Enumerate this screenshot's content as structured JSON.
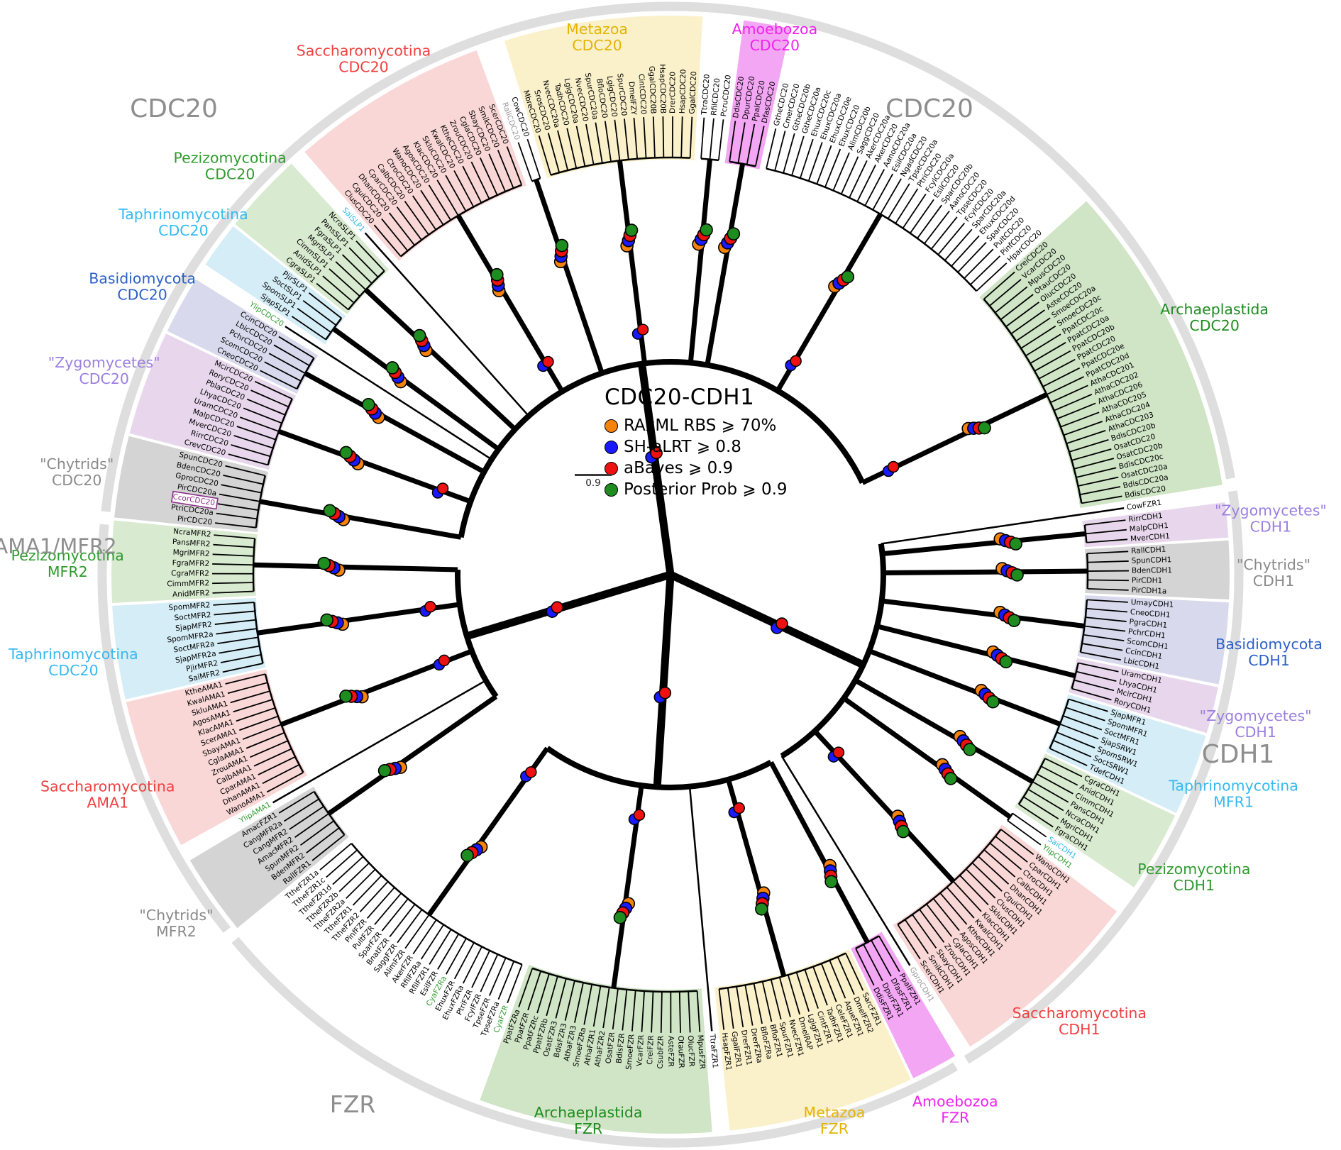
{
  "figure": {
    "legend": {
      "title": "CDC20-CDH1",
      "items": [
        {
          "label": "RAxML RBS ⩾ 70%",
          "color": "#F5820B"
        },
        {
          "label": "SH-aLRT ⩾ 0.8",
          "color": "#1A1AFF"
        },
        {
          "label": "aBayes ⩾ 0.9",
          "color": "#EE1111"
        },
        {
          "label": "Posterior Prob ⩾ 0.9",
          "color": "#1E8C1E"
        }
      ],
      "scale_bar_label": "0.9"
    }
  },
  "outer_ring_labels": [
    {
      "text": "CDC20",
      "color": "#8E8E8E"
    },
    {
      "text": "CDC20",
      "color": "#8E8E8E"
    },
    {
      "text": "AMA1/MFR2",
      "color": "#8E8E8E"
    },
    {
      "text": "CDH1",
      "color": "#8E8E8E"
    },
    {
      "text": "FZR",
      "color": "#8E8E8E"
    }
  ],
  "tree": {
    "special_leaf_styles": {
      "RallCDC20": {
        "color": "#9A9A9A"
      },
      "GproCDH1": {
        "color": "#9A9A9A"
      },
      "SaiSLP1": {
        "color": "#2BB8E8"
      },
      "SaiCDH1": {
        "color": "#2BB8E8"
      },
      "YlipCDC20": {
        "color": "#2E9B2E"
      },
      "YlipAMA1": {
        "color": "#2E9B2E"
      },
      "YlipCDH1": {
        "color": "#2E9B2E"
      },
      "CyaFZR": {
        "color": "#2E9B2E"
      },
      "CyaFZRa": {
        "color": "#2E9B2E"
      },
      "CcorCDC20": {
        "color": "#8B2F8B",
        "boxed": true
      }
    },
    "sectors": [
      {
        "id": "cdc20-top-singles",
        "bg": null,
        "label": null,
        "leaves": [
          "RallCDC20",
          "CowCDC20"
        ]
      },
      {
        "id": "metazoa-cdc20",
        "bg": "#FAF1CB",
        "label": {
          "line1": "Metazoa",
          "line2": "CDC20",
          "color": "#E3B400"
        },
        "leaves": [
          "MbreCDC20",
          "SrosCDC20",
          "NvecCDC20a",
          "TadhCDC20",
          "LgigCDC20a",
          "NvecCDC20",
          "SpurCDC20a",
          "BfloCDC20",
          "LgigCDC20",
          "SpurCDC20",
          "DmelFZY",
          "CintCDC20",
          "GgalCDC20B",
          "HsapCDC20B",
          "DrerCDC20",
          "HsapCDC20",
          "GgalCDC20"
        ]
      },
      {
        "id": "cdc20-ciliate-singles",
        "bg": null,
        "label": null,
        "leaves": [
          "TtraCDC20",
          "RfilCDC20",
          "PcruCDC20"
        ]
      },
      {
        "id": "amoebozoa-cdc20",
        "bg": "#F3A6F3",
        "label": {
          "line1": "Amoebozoa",
          "line2": "CDC20",
          "color": "#EE22EE"
        },
        "leaves": [
          "DdisCDC20",
          "DpurCDC20",
          "PpalCDC20",
          "DfasCDC20"
        ]
      },
      {
        "id": "cdc20-algal-white",
        "bg": null,
        "label": null,
        "leaves": [
          "GtheCDC20",
          "CmerCDC20",
          "GtheCDC20b",
          "GtheCDC20a",
          "EhuxCDC20c",
          "EhuxCDC20a",
          "EhuxCDC20e",
          "EhuxCDC20",
          "AlimCDC20b",
          "SaggCDC20",
          "AkerCDC20a",
          "AkerCDC20",
          "AanoCDC20a",
          "EsilCDC20a",
          "NgadCDC20",
          "TpseCDC20a",
          "PtriCDC20",
          "FcylCDC20a",
          "EsilCDC20",
          "SparCDC20b",
          "AanoCDC20",
          "TpseCDC20",
          "FcylCDC20",
          "SparCDC20a",
          "EhuxCDC20d",
          "SparCDC20",
          "PultCDC20",
          "PinfCDC20",
          "HparCDC20"
        ]
      },
      {
        "id": "archaeplastida-cdc20",
        "bg": "#CFE5C6",
        "label": {
          "line1": "Archaeplastida",
          "line2": "CDC20",
          "color": "#1E8C1E"
        },
        "leaves": [
          "CreiCDC20",
          "VcarCDC20",
          "MpusCDC20",
          "OtauCDC20",
          "OlucCDC20",
          "AsteCDC20",
          "SmoeCDC20a",
          "SmoeCDC20c",
          "PpatCDC20c",
          "PpatCDC20a",
          "PpatCDC20b",
          "PpatCDC20",
          "PpatCDC20e",
          "PpatCDC20d",
          "AthaCDC201",
          "AthaCDC202",
          "AthaCDC206",
          "AthaCDC205",
          "AthaCDC204",
          "AthaCDC203",
          "BdisCDC20b",
          "OsatCDC20",
          "OsatCDC20b",
          "BdisCDC20c",
          "OsatCDC20a",
          "BdisCDC20a",
          "BdisCDC20"
        ]
      },
      {
        "id": "cow-fzr1-single",
        "bg": null,
        "label": null,
        "leaves": [
          "CowFZR1"
        ]
      },
      {
        "id": "zygomycetes-cdh1-a",
        "bg": "#E8D7EC",
        "label": {
          "line1": "\"Zygomycetes\"",
          "line2": "CDH1",
          "color": "#9B7FE0"
        },
        "leaves": [
          "RirrCDH1",
          "MalpCDH1",
          "MverCDH1"
        ]
      },
      {
        "id": "chytrids-cdh1",
        "bg": "#D4D4D4",
        "label": {
          "line1": "\"Chytrids\"",
          "line2": "CDH1",
          "color": "#8A8A8A"
        },
        "leaves": [
          "RallCDH1",
          "SpunCDH1",
          "BdenCDH1",
          "PirCDH1",
          "PirCDH1a"
        ]
      },
      {
        "id": "basidiomycota-cdh1",
        "bg": "#D8D9ED",
        "label": {
          "line1": "Basidiomycota",
          "line2": "CDH1",
          "color": "#2B5FC7"
        },
        "leaves": [
          "UmayCDH1",
          "CneoCDH1",
          "PgraCDH1",
          "PchrCDH1",
          "ScomCDH1",
          "CcinCDH1",
          "LbicCDH1"
        ]
      },
      {
        "id": "zygomycetes-cdh1-b",
        "bg": "#E8D7EC",
        "label": {
          "line1": "\"Zygomycetes\"",
          "line2": "CDH1",
          "color": "#9B7FE0"
        },
        "leaves": [
          "UramCDH1",
          "LhyaCDH1",
          "McirCDH1",
          "RoryCDH1"
        ]
      },
      {
        "id": "taphrinomycotina-mfr1",
        "bg": "#D4EDF6",
        "label": {
          "line1": "Taphrinomycotina",
          "line2": "MFR1",
          "color": "#36B9F0"
        },
        "leaves": [
          "SjapMFR1",
          "SpomMFR1",
          "SoctMFR1",
          "SjapSRW1",
          "SpomSRW1",
          "SoctSRW1",
          "TdefCDH1"
        ]
      },
      {
        "id": "pezizomycotina-cdh1",
        "bg": "#D8EACF",
        "label": {
          "line1": "Pezizomycotina",
          "line2": "CDH1",
          "color": "#2E9B2E"
        },
        "leaves": [
          "CgraCDH1",
          "AnidCDH1",
          "CimmCDH1",
          "PansCDH1",
          "NcraCDH1",
          "MgriCDH1",
          "FgraCDH1"
        ]
      },
      {
        "id": "cdh1-singles",
        "bg": null,
        "label": null,
        "leaves": [
          "SaiCDH1",
          "YlipCDH1"
        ]
      },
      {
        "id": "saccharomycotina-cdh1",
        "bg": "#FAD7D7",
        "label": {
          "line1": "Saccharomycotina",
          "line2": "CDH1",
          "color": "#EE4040"
        },
        "leaves": [
          "WanoCDH1",
          "CparCDH1",
          "CtroCDH1",
          "CalbCDH1",
          "DhanCDH1",
          "CguiCDH1",
          "ClusCDH1",
          "SkluCDH1",
          "KlacCDH1",
          "KwalCDH1",
          "KtheCDH1",
          "AgosCDH1",
          "CglaCDH1",
          "ZrouCDH1",
          "SbayCDH1",
          "SmikCDH1",
          "ScerCDH1"
        ]
      },
      {
        "id": "gpro-cdh1-single",
        "bg": null,
        "label": null,
        "leaves": [
          "GproCDH1"
        ]
      },
      {
        "id": "amoebozoa-fzr",
        "bg": "#F3A6F3",
        "label": {
          "line1": "Amoebozoa",
          "line2": "FZR",
          "color": "#EE22EE"
        },
        "leaves": [
          "PpalFZR1",
          "DfasFZR1",
          "DpurFZR1",
          "DdisFZR1"
        ]
      },
      {
        "id": "metazoa-fzr",
        "bg": "#FAF1CB",
        "label": {
          "line1": "Metazoa",
          "line2": "FZR",
          "color": "#E3B400"
        },
        "leaves": [
          "SarcFZR1",
          "DmelFZR2",
          "AqueFZR1",
          "CeleFZR1",
          "TadhFZR1",
          "CintFZR1",
          "LgigFZR1",
          "DmelRAP",
          "NvecFZR1",
          "SpurFZR1",
          "BfloFZR1",
          "BfloFZRa",
          "DrerFZRa",
          "DrerFZR1",
          "GgalFZR1",
          "HsapFZR1"
        ]
      },
      {
        "id": "ttra-fzr1-single",
        "bg": null,
        "label": null,
        "leaves": [
          "TtraFZR1"
        ]
      },
      {
        "id": "archaeplastida-fzr",
        "bg": "#CFE5C6",
        "label": {
          "line1": "Archaeplastida",
          "line2": "FZR",
          "color": "#1E8C1E"
        },
        "leaves": [
          "MpusFZR",
          "OlucFZR",
          "OtauFZR",
          "AsteFZR",
          "CsubFZR",
          "CreiFZR",
          "VcarFZR",
          "SmoeFZR",
          "BdisFZR",
          "OsatFZR",
          "AthaFZR2",
          "AthaFZR1",
          "SmoeFZRa",
          "AthaFZR3",
          "BdisFZR3",
          "OsatFZR3",
          "PpatFZRb",
          "PpatFZRc",
          "PpatFZR",
          "PpatFZRa"
        ]
      },
      {
        "id": "fzr-algal-white",
        "bg": null,
        "label": null,
        "leaves": [
          "CyaFZR",
          "TpseFZRa",
          "TpseFZR",
          "FcylFZR",
          "PtriFZR",
          "EhuxFZRa",
          "EhuxFZR",
          "CyaFZRa",
          "EsilFZR",
          "RfilFZR1",
          "RfilFZRa",
          "AkerFZR",
          "AlimFZR",
          "SaggFZR",
          "BnatFZR",
          "SparFZR",
          "PultFZR",
          "PinfFZR",
          "TtheFZR2",
          "TtheFZR1",
          "TtheFZR2a",
          "TtheFZR2b",
          "TtheFZR1d",
          "TtheFZR1c",
          "TtheFZR1a"
        ]
      },
      {
        "id": "chytrids-mfr2",
        "bg": "#D4D4D4",
        "label": {
          "line1": "\"Chytrids\"",
          "line2": "MFR2",
          "color": "#8A8A8A"
        },
        "leaves": [
          "RallFZR1",
          "BdenMFR2",
          "SpunMFR2",
          "AmacMFR2",
          "CangMFR2",
          "CangMFR2a",
          "AmacFZR1"
        ]
      },
      {
        "id": "ylip-ama1-single",
        "bg": null,
        "label": null,
        "leaves": [
          "YlipAMA1"
        ]
      },
      {
        "id": "saccharomycotina-ama1",
        "bg": "#FAD7D7",
        "label": {
          "line1": "Saccharomycotina",
          "line2": "AMA1",
          "color": "#EE4040"
        },
        "leaves": [
          "WanoAMA1",
          "DhanAMA1",
          "CparAMA1",
          "CalbAMA1",
          "ZrouAMA1",
          "CglaAMA1",
          "SbayAMA1",
          "ScerAMA1",
          "KlacAMA1",
          "AgosAMA1",
          "SkluAMA1",
          "KwalAMA1",
          "KtheAMA1"
        ]
      },
      {
        "id": "taphrinomycotina-mfr2",
        "bg": "#D4EDF6",
        "label": {
          "line1": "Taphrinomycotina",
          "line2": "CDC20",
          "color": "#36B9F0"
        },
        "leaves": [
          "SaiMFR2",
          "PjirMFR2",
          "SjapMFR2a",
          "SoctMFR2a",
          "SpomMFR2a",
          "SjapMFR2",
          "SoctMFR2",
          "SpomMFR2"
        ]
      },
      {
        "id": "pezizomycotina-mfr2",
        "bg": "#D8EACF",
        "label": {
          "line1": "Pezizomycotina",
          "line2": "MFR2",
          "color": "#2E9B2E"
        },
        "leaves": [
          "AnidMFR2",
          "CimmMFR2",
          "CgraMFR2",
          "FgraMFR2",
          "MgriMFR2",
          "PansMFR2",
          "NcraMFR2"
        ]
      },
      {
        "id": "chytrids-cdc20",
        "bg": "#D4D4D4",
        "label": {
          "line1": "\"Chytrids\"",
          "line2": "CDC20",
          "color": "#8A8A8A"
        },
        "leaves": [
          "PirCDC20",
          "PtriCDC20a",
          "CcorCDC20",
          "PirCDC20a",
          "GproCDC20",
          "BdenCDC20",
          "SpunCDC20"
        ]
      },
      {
        "id": "zygomycetes-cdc20",
        "bg": "#E8D7EC",
        "label": {
          "line1": "\"Zygomycetes\"",
          "line2": "CDC20",
          "color": "#9B7FE0"
        },
        "leaves": [
          "CrevCDC20",
          "RirrCDC20",
          "MverCDC20",
          "MalpCDC20",
          "UramCDC20",
          "LhyaCDC20",
          "PblaCDC20",
          "RoryCDC20",
          "McirCDC20"
        ]
      },
      {
        "id": "basidiomycota-cdc20",
        "bg": "#D8D9ED",
        "label": {
          "line1": "Basidiomycota",
          "line2": "CDC20",
          "color": "#2B5FC7"
        },
        "leaves": [
          "CneoCDC20",
          "ScomCDC20",
          "PchrCDC20",
          "LbicCDC20",
          "CcinCDC20"
        ]
      },
      {
        "id": "ylip-cdc20-single",
        "bg": null,
        "label": null,
        "leaves": [
          "YlipCDC20"
        ]
      },
      {
        "id": "taphrinomycotina-cdc20",
        "bg": "#D4EDF6",
        "label": {
          "line1": "Taphrinomycotina",
          "line2": "CDC20",
          "color": "#36B9F0"
        },
        "leaves": [
          "SjapSLP1",
          "SpomSLP1",
          "SoctSLP1",
          "PjirSLP1"
        ]
      },
      {
        "id": "pezizomycotina-cdc20",
        "bg": "#D8EACF",
        "label": {
          "line1": "Pezizomycotina",
          "line2": "CDC20",
          "color": "#2E9B2E"
        },
        "leaves": [
          "CgraSLP1",
          "AnidSLP1",
          "CimmSLP1",
          "MgriSLP1",
          "FgraSLP1",
          "PansSLP1",
          "NcraSLP1"
        ]
      },
      {
        "id": "sai-slp1-single",
        "bg": null,
        "label": null,
        "leaves": [
          "SaiSLP1"
        ]
      },
      {
        "id": "saccharomycotina-cdc20",
        "bg": "#FAD7D7",
        "label": {
          "line1": "Saccharomycotina",
          "line2": "CDC20",
          "color": "#EE4040"
        },
        "leaves": [
          "ClusCDC20",
          "CguiCDC20",
          "DhanCDC20",
          "CparCDC20",
          "CalbCDC20",
          "CtroCDC20",
          "WanoCDC20",
          "AgosCDC20",
          "KlacCDC20",
          "SkluCDC20",
          "KwalCDC20",
          "KtheCDC20",
          "ZrouCDC20",
          "CglaCDC20",
          "SbayCDC20",
          "SmikCDC20",
          "ScerCDC20"
        ]
      }
    ]
  }
}
